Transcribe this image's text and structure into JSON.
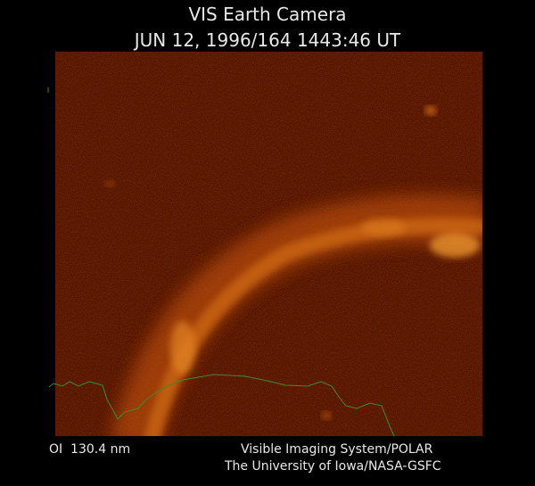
{
  "header": {
    "title": "VIS Earth Camera",
    "subtitle": "JUN 12, 1996/164 1443:46 UT"
  },
  "footer": {
    "wavelength": "OI  130.4 nm",
    "credits": [
      "Visible Imaging System/POLAR",
      "The University of Iowa/NASA-GSFC"
    ]
  }
}
